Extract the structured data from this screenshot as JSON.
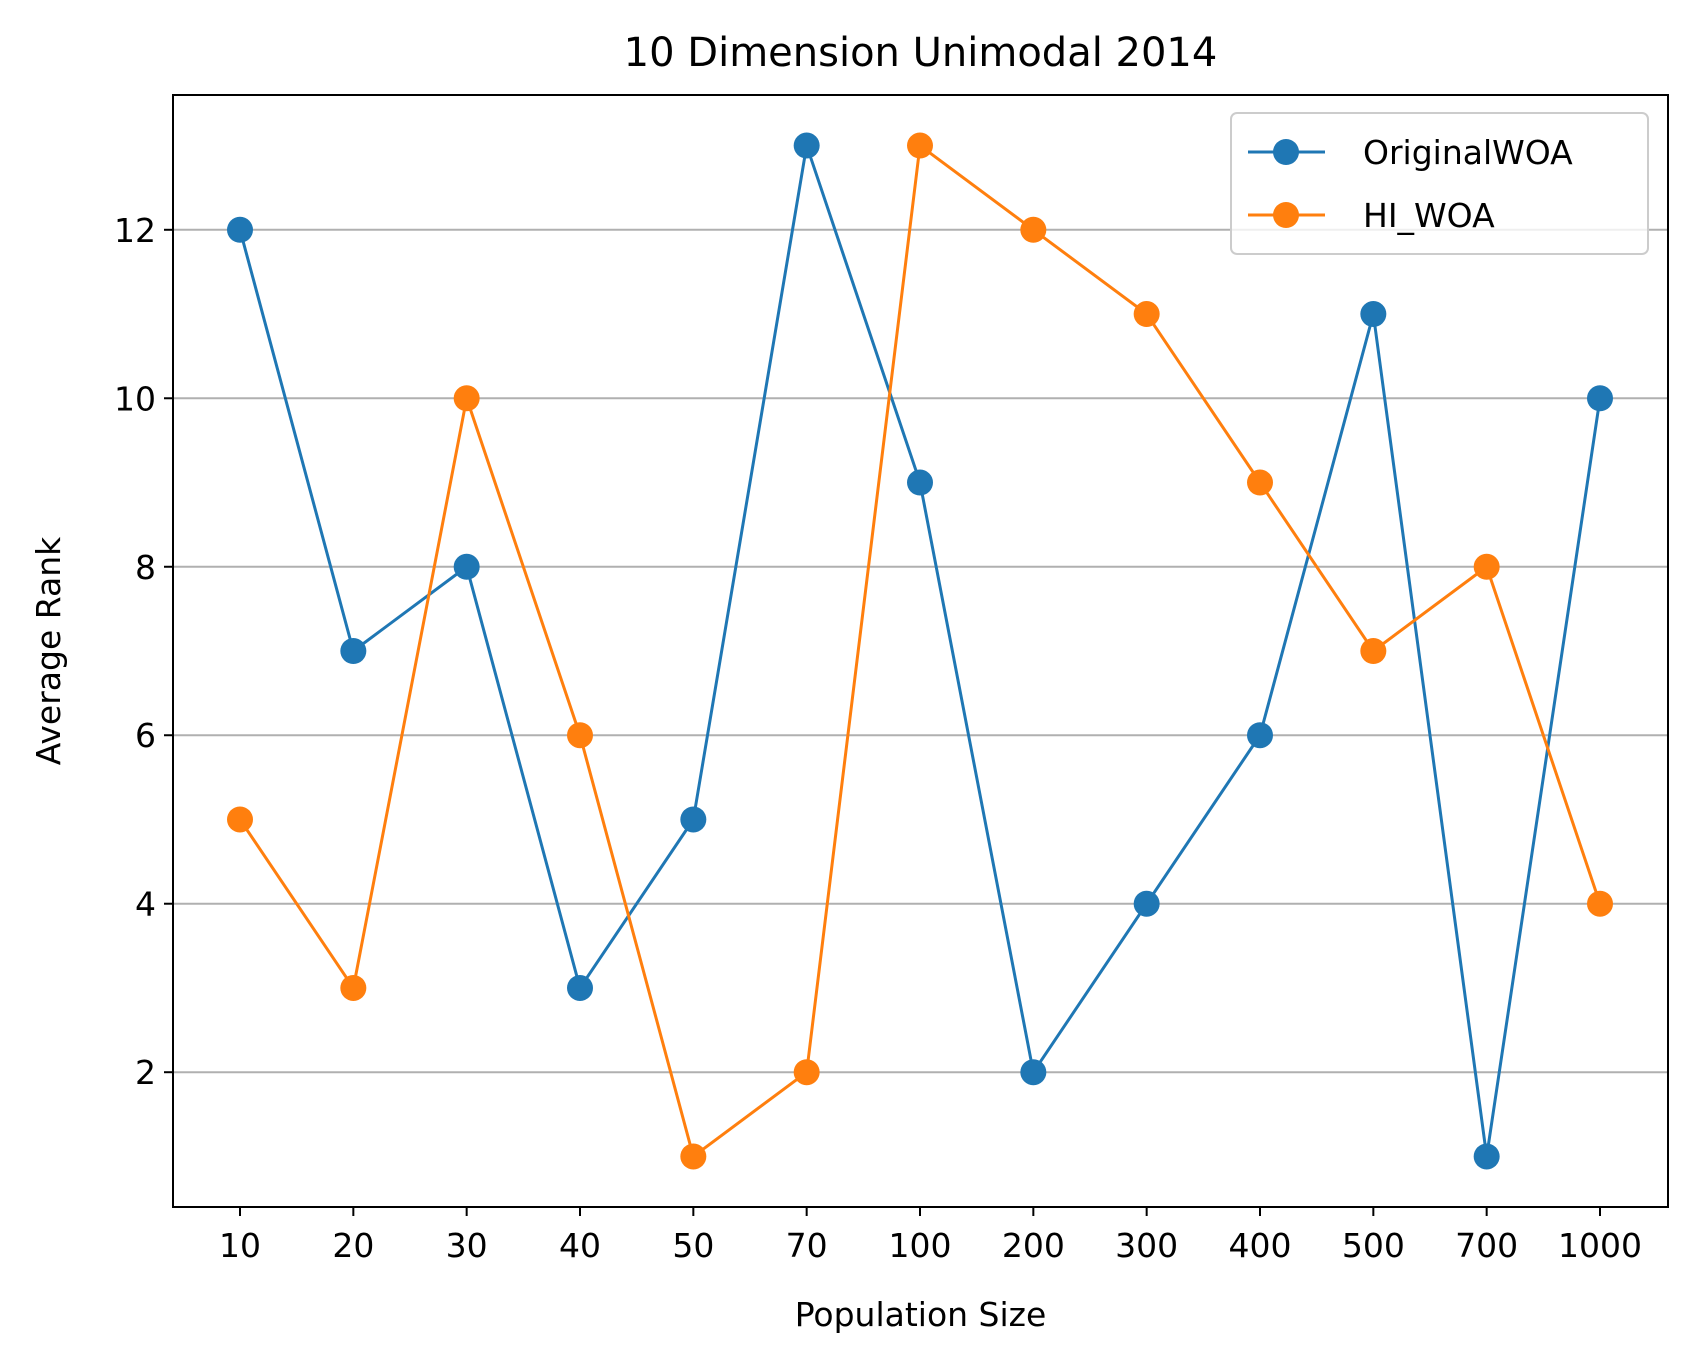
{
  "chart_data": {
    "type": "line",
    "title": "10 Dimension Unimodal 2014",
    "xlabel": "Population Size",
    "ylabel": "Average Rank",
    "categories": [
      "10",
      "20",
      "30",
      "40",
      "50",
      "70",
      "100",
      "200",
      "300",
      "400",
      "500",
      "700",
      "1000"
    ],
    "series": [
      {
        "name": "OriginalWOA",
        "color": "#1f77b4",
        "values": [
          12,
          7,
          8,
          3,
          5,
          13,
          9,
          2,
          4,
          6,
          11,
          1,
          10
        ]
      },
      {
        "name": "HI_WOA",
        "color": "#ff7f0e",
        "values": [
          5,
          3,
          10,
          6,
          1,
          2,
          13,
          12,
          11,
          9,
          7,
          8,
          4
        ]
      }
    ],
    "ylim": [
      0.4,
      13.6
    ],
    "yticks": [
      "2",
      "4",
      "6",
      "8",
      "10",
      "12"
    ],
    "grid": "y-axis only",
    "legend": "top-right",
    "marker": "circle"
  }
}
